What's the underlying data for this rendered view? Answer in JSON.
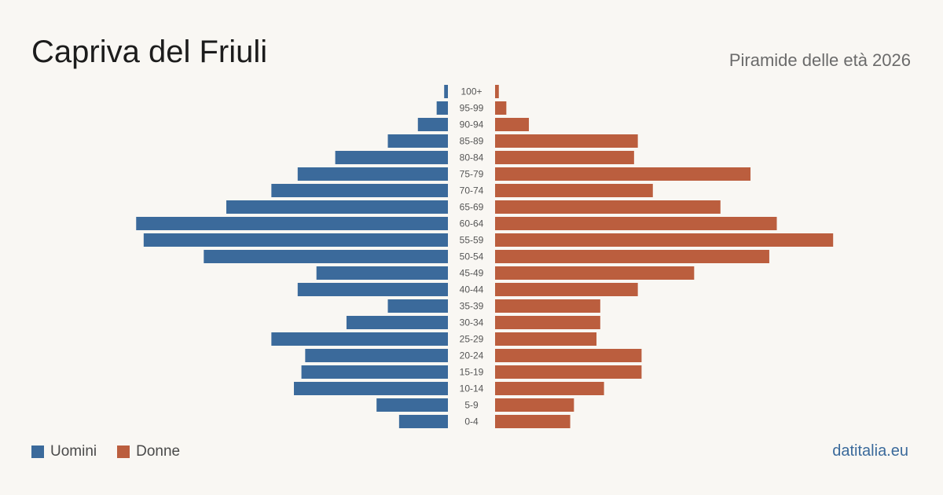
{
  "title": "Capriva del Friuli",
  "subtitle": "Piramide delle età 2026",
  "source": "datitalia.eu",
  "colors": {
    "men": "#3b6a9b",
    "women": "#bb5e3e",
    "background": "#f9f7f3"
  },
  "legend": {
    "men": "Uomini",
    "women": "Donne"
  },
  "chart_data": {
    "type": "bar",
    "orientation": "horizontal-pyramid",
    "categories": [
      "100+",
      "95-99",
      "90-94",
      "85-89",
      "80-84",
      "75-79",
      "70-74",
      "65-69",
      "60-64",
      "55-59",
      "50-54",
      "45-49",
      "40-44",
      "35-39",
      "30-34",
      "25-29",
      "20-24",
      "15-19",
      "10-14",
      "5-9",
      "0-4"
    ],
    "series": [
      {
        "name": "Uomini",
        "values": [
          1,
          3,
          8,
          16,
          30,
          40,
          47,
          59,
          83,
          81,
          65,
          35,
          40,
          16,
          27,
          47,
          38,
          39,
          41,
          19,
          13
        ]
      },
      {
        "name": "Donne",
        "values": [
          1,
          3,
          9,
          38,
          37,
          68,
          42,
          60,
          75,
          90,
          73,
          53,
          38,
          28,
          28,
          27,
          39,
          39,
          29,
          21,
          20
        ]
      }
    ]
  }
}
